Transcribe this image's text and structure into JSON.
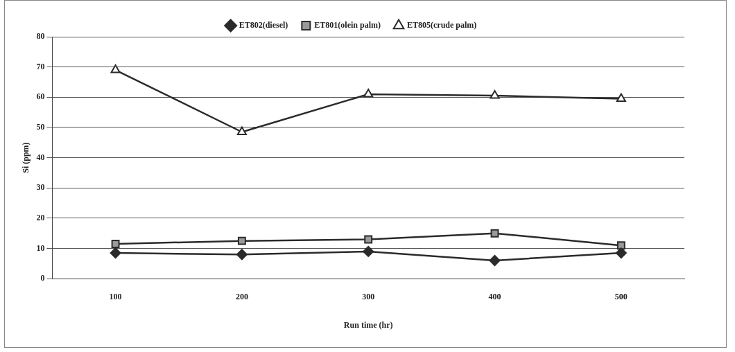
{
  "chart_data": {
    "type": "line",
    "xlabel": "Run time (hr)",
    "ylabel": "Si (ppm)",
    "categories": [
      "100",
      "200",
      "300",
      "400",
      "500"
    ],
    "ylim": [
      0,
      80
    ],
    "yticks": [
      0,
      10,
      20,
      30,
      40,
      50,
      60,
      70,
      80
    ],
    "grid": "y",
    "legend": "top",
    "line_style": "solid",
    "series": [
      {
        "name": "ET802(diesel)",
        "color": "#2b2b2b",
        "marker": "diamond",
        "values": [
          8.5,
          8,
          9,
          6,
          8.5
        ]
      },
      {
        "name": "ET801(olein palm)",
        "color": "#2b2b2b",
        "marker": "square",
        "values": [
          11.5,
          12.5,
          13,
          15,
          11
        ]
      },
      {
        "name": "ET805(crude palm)",
        "color": "#2b2b2b",
        "marker": "triangle",
        "values": [
          69,
          48.5,
          61,
          60.5,
          59.5
        ]
      }
    ]
  }
}
